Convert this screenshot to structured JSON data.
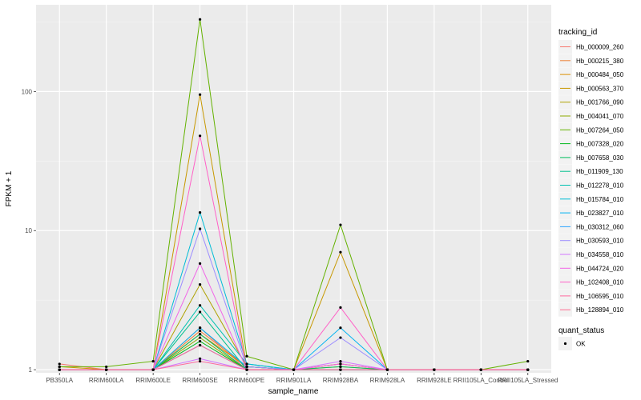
{
  "chart_data": {
    "type": "line",
    "xlabel": "sample_name",
    "ylabel": "FPKM + 1",
    "y_scale": "log10",
    "ylim": [
      0.95,
      420
    ],
    "yticks": [
      1,
      10,
      100
    ],
    "ytick_labels": [
      "1",
      "10",
      "100"
    ],
    "grid": true,
    "panel_background": "#ebebeb",
    "legend_placement": "right",
    "categories": [
      "PB350LA",
      "RRIM600LA",
      "RRIM600LE",
      "RRIM600SE",
      "RRIM600PE",
      "RRIM901LA",
      "RRIM928BA",
      "RRIM928LA",
      "RRIM928LE",
      "RRII105LA_Control",
      "RRII105LA_Stressed"
    ],
    "color_legend": {
      "title": "tracking_id"
    },
    "shape_legend": {
      "title": "quant_status",
      "items": [
        "OK"
      ]
    },
    "series": [
      {
        "name": "Hb_000009_260",
        "color": "#F8766D",
        "values": [
          1.1,
          1.0,
          1.0,
          2.0,
          1.0,
          1.0,
          1.1,
          1.0,
          1.0,
          1.0,
          1.0
        ]
      },
      {
        "name": "Hb_000215_380",
        "color": "#EC8239",
        "values": [
          1.0,
          1.0,
          1.0,
          1.9,
          1.05,
          1.0,
          1.05,
          1.0,
          1.0,
          1.0,
          1.0
        ]
      },
      {
        "name": "Hb_000484_050",
        "color": "#DB8E00",
        "values": [
          1.0,
          1.0,
          1.0,
          1.8,
          1.05,
          1.0,
          1.0,
          1.0,
          1.0,
          1.0,
          1.0
        ]
      },
      {
        "name": "Hb_000563_370",
        "color": "#C79800",
        "values": [
          1.05,
          1.0,
          1.0,
          95,
          1.05,
          1.0,
          7.0,
          1.0,
          1.0,
          1.0,
          1.0
        ]
      },
      {
        "name": "Hb_001766_090",
        "color": "#AEA200",
        "values": [
          1.0,
          1.0,
          1.0,
          4.1,
          1.05,
          1.0,
          1.1,
          1.0,
          1.0,
          1.0,
          1.0
        ]
      },
      {
        "name": "Hb_004041_070",
        "color": "#8FAA00",
        "values": [
          1.0,
          1.0,
          1.0,
          1.7,
          1.0,
          1.0,
          1.0,
          1.0,
          1.0,
          1.0,
          1.0
        ]
      },
      {
        "name": "Hb_007264_050",
        "color": "#64B200",
        "values": [
          1.05,
          1.05,
          1.15,
          330,
          1.25,
          1.0,
          11,
          1.0,
          1.0,
          1.0,
          1.15
        ]
      },
      {
        "name": "Hb_007328_020",
        "color": "#00B81B",
        "values": [
          1.0,
          1.0,
          1.0,
          1.6,
          1.0,
          1.0,
          1.0,
          1.0,
          1.0,
          1.0,
          1.0
        ]
      },
      {
        "name": "Hb_007658_030",
        "color": "#00BD5C",
        "values": [
          1.0,
          1.0,
          1.0,
          1.8,
          1.0,
          1.0,
          1.05,
          1.0,
          1.0,
          1.0,
          1.0
        ]
      },
      {
        "name": "Hb_011909_130",
        "color": "#00C08E",
        "values": [
          1.0,
          1.0,
          1.0,
          2.6,
          1.0,
          1.0,
          1.0,
          1.0,
          1.0,
          1.0,
          1.0
        ]
      },
      {
        "name": "Hb_012278_010",
        "color": "#00C1B2",
        "values": [
          1.0,
          1.0,
          1.0,
          2.9,
          1.1,
          1.0,
          1.0,
          1.0,
          1.0,
          1.0,
          1.0
        ]
      },
      {
        "name": "Hb_015784_010",
        "color": "#00BCD6",
        "values": [
          1.0,
          1.0,
          1.0,
          13.5,
          1.1,
          1.0,
          1.0,
          1.0,
          1.0,
          1.0,
          1.0
        ]
      },
      {
        "name": "Hb_023827_010",
        "color": "#00B3F2",
        "values": [
          1.0,
          1.0,
          1.0,
          2.0,
          1.05,
          1.0,
          2.0,
          1.0,
          1.0,
          1.0,
          1.0
        ]
      },
      {
        "name": "Hb_030312_060",
        "color": "#29A3FF",
        "values": [
          1.0,
          1.0,
          1.0,
          1.5,
          1.0,
          1.0,
          1.0,
          1.0,
          1.0,
          1.0,
          1.0
        ]
      },
      {
        "name": "Hb_030593_010",
        "color": "#9C8DFF",
        "values": [
          1.0,
          1.0,
          1.0,
          10.3,
          1.05,
          1.0,
          1.7,
          1.0,
          1.0,
          1.0,
          1.0
        ]
      },
      {
        "name": "Hb_034558_010",
        "color": "#D277FF",
        "values": [
          1.0,
          1.0,
          1.0,
          1.2,
          1.0,
          1.0,
          1.15,
          1.0,
          1.0,
          1.0,
          1.0
        ]
      },
      {
        "name": "Hb_044724_020",
        "color": "#F166E8",
        "values": [
          1.0,
          1.0,
          1.0,
          5.8,
          1.0,
          1.0,
          1.1,
          1.0,
          1.0,
          1.0,
          1.0
        ]
      },
      {
        "name": "Hb_102408_010",
        "color": "#FF61C7",
        "values": [
          1.0,
          1.0,
          1.0,
          48,
          1.0,
          1.0,
          2.8,
          1.0,
          1.0,
          1.0,
          1.0
        ]
      },
      {
        "name": "Hb_106595_010",
        "color": "#FF689E",
        "values": [
          1.0,
          1.0,
          1.0,
          1.15,
          1.0,
          1.0,
          1.0,
          1.0,
          1.0,
          1.0,
          1.0
        ]
      },
      {
        "name": "Hb_128894_010",
        "color": "#FF6C90",
        "values": [
          1.0,
          1.0,
          1.0,
          1.5,
          1.0,
          1.0,
          1.0,
          1.0,
          1.0,
          1.0,
          1.0
        ]
      }
    ]
  }
}
